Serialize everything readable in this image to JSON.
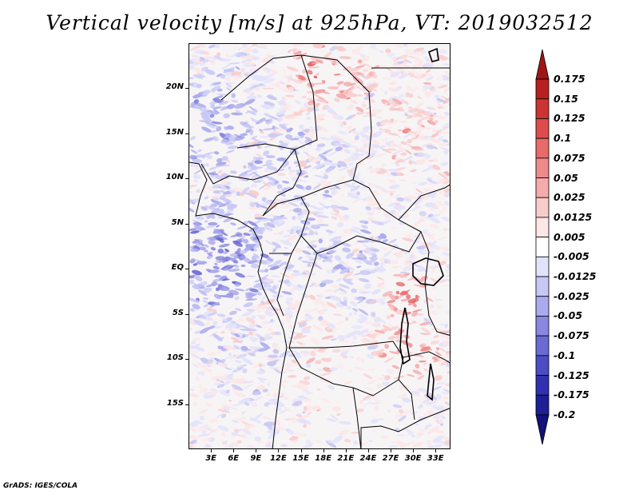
{
  "title": "Vertical velocity [m/s] at 925hPa, VT: 2019032512",
  "footer": "GrADS: IGES/COLA",
  "lat_labels": [
    "20N",
    "15N",
    "10N",
    "5N",
    "EQ",
    "5S",
    "10S",
    "15S"
  ],
  "lat_values": [
    20,
    15,
    10,
    5,
    0,
    -5,
    -10,
    -15
  ],
  "lon_labels": [
    "3E",
    "6E",
    "9E",
    "12E",
    "15E",
    "18E",
    "21E",
    "24E",
    "27E",
    "30E",
    "33E"
  ],
  "lon_values": [
    3,
    6,
    9,
    12,
    15,
    18,
    21,
    24,
    27,
    30,
    33
  ],
  "map_extent": {
    "lon_min": 0,
    "lon_max": 35,
    "lat_min": -20,
    "lat_max": 25
  },
  "colorbar": {
    "labels": [
      "0.175",
      "0.15",
      "0.125",
      "0.1",
      "0.075",
      "0.05",
      "0.025",
      "0.0125",
      "0.005",
      "-0.005",
      "-0.0125",
      "-0.025",
      "-0.05",
      "-0.075",
      "-0.1",
      "-0.125",
      "-0.175",
      "-0.2"
    ],
    "colors": [
      "#a01515",
      "#b82020",
      "#cc3333",
      "#dd4d4d",
      "#e86a6a",
      "#ef8a8a",
      "#f5abab",
      "#f9cccc",
      "#fce6e6",
      "#ffffff",
      "#e2e2fb",
      "#c8c8f5",
      "#aaaaee",
      "#8888e2",
      "#6a6ad4",
      "#4c4cc4",
      "#3030b0",
      "#1e1e96",
      "#12127a"
    ]
  }
}
